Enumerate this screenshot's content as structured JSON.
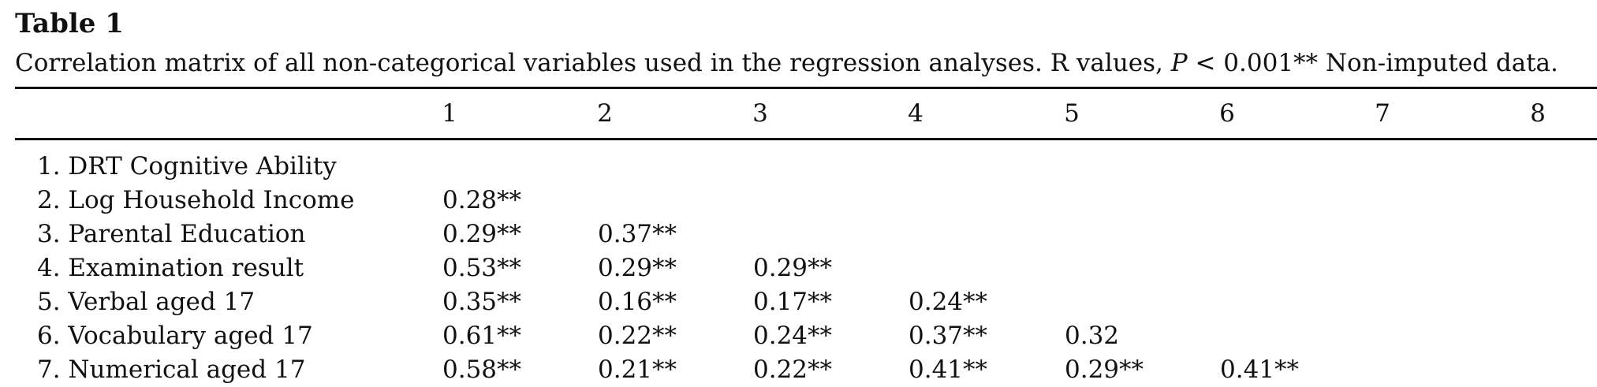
{
  "table": {
    "title": "Table 1",
    "caption_prefix": "Correlation matrix of all non-categorical variables used in the regression analyses. R values, ",
    "caption_italic": "P",
    "caption_suffix": " < 0.001** Non-imputed data.",
    "columns": [
      "1",
      "2",
      "3",
      "4",
      "5",
      "6",
      "7",
      "8"
    ],
    "rows": [
      {
        "label": "1. DRT Cognitive Ability",
        "cells": [
          "",
          "",
          "",
          "",
          "",
          "",
          "",
          ""
        ]
      },
      {
        "label": "2. Log Household Income",
        "cells": [
          "0.28**",
          "",
          "",
          "",
          "",
          "",
          "",
          ""
        ]
      },
      {
        "label": "3. Parental Education",
        "cells": [
          "0.29**",
          "0.37**",
          "",
          "",
          "",
          "",
          "",
          ""
        ]
      },
      {
        "label": "4. Examination result",
        "cells": [
          "0.53**",
          "0.29**",
          "0.29**",
          "",
          "",
          "",
          "",
          ""
        ]
      },
      {
        "label": "5. Verbal aged 17",
        "cells": [
          "0.35**",
          "0.16**",
          "0.17**",
          "0.24**",
          "",
          "",
          "",
          ""
        ]
      },
      {
        "label": "6. Vocabulary aged 17",
        "cells": [
          "0.61**",
          "0.22**",
          "0.24**",
          "0.37**",
          "0.32",
          "",
          "",
          ""
        ]
      },
      {
        "label": "7. Numerical aged 17",
        "cells": [
          "0.58**",
          "0.21**",
          "0.22**",
          "0.41**",
          "0.29**",
          "0.41**",
          "",
          ""
        ]
      }
    ]
  }
}
